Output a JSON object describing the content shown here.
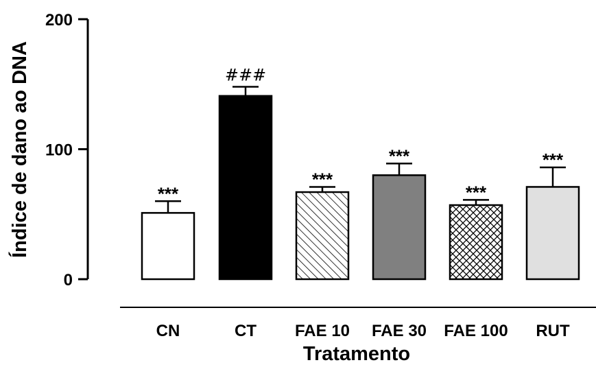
{
  "chart_data": {
    "type": "bar",
    "xlabel": "Tratamento",
    "ylabel": "Índice de dano ao DNA",
    "ylim": [
      0,
      200
    ],
    "yticks": [
      {
        "value": 0,
        "label": "0"
      },
      {
        "value": 100,
        "label": "100"
      },
      {
        "value": 200,
        "label": "200"
      }
    ],
    "categories": [
      "CN",
      "CT",
      "FAE 10",
      "FAE 30",
      "FAE 100",
      "RUT"
    ],
    "values": [
      51,
      141,
      67,
      80,
      57,
      71
    ],
    "errors": [
      9,
      7,
      4,
      9,
      4,
      15
    ],
    "annotations": [
      "***",
      "###",
      "***",
      "***",
      "***",
      "***"
    ],
    "fills": [
      "white",
      "black",
      "diagonal-hatch",
      "dark-gray",
      "crosshatch",
      "light-gray"
    ],
    "fill_colors": [
      "#ffffff",
      "#000000",
      "#ffffff",
      "#808080",
      "#ffffff",
      "#e0e0e0"
    ],
    "grid": false,
    "legend": "none"
  }
}
